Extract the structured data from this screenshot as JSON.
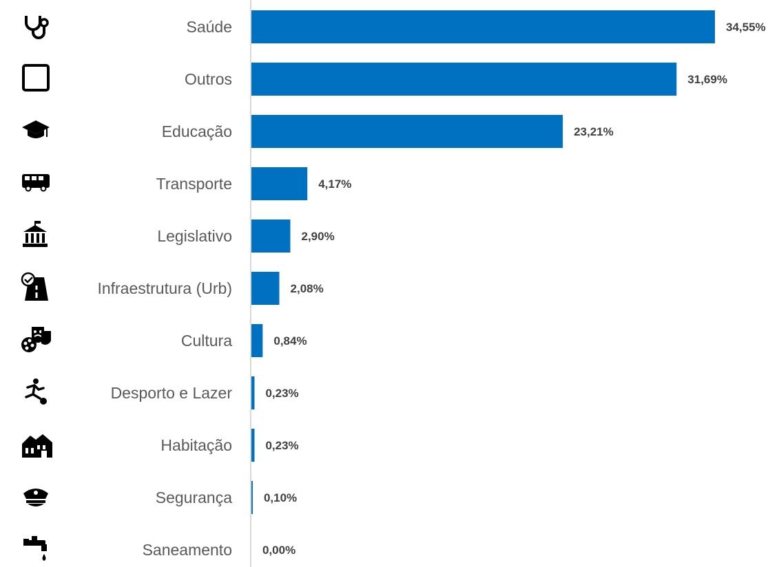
{
  "chart_data": {
    "type": "bar",
    "orientation": "horizontal",
    "categories": [
      "Saúde",
      "Outros",
      "Educação",
      "Transporte",
      "Legislativo",
      "Infraestrutura (Urb)",
      "Cultura",
      "Desporto e Lazer",
      "Habitação",
      "Segurança",
      "Saneamento"
    ],
    "values": [
      34.55,
      31.69,
      23.21,
      4.17,
      2.9,
      2.08,
      0.84,
      0.23,
      0.23,
      0.1,
      0.0
    ],
    "value_labels": [
      "34,55%",
      "31,69%",
      "23,21%",
      "4,17%",
      "2,90%",
      "2,08%",
      "0,84%",
      "0,23%",
      "0,23%",
      "0,10%",
      "0,00%"
    ],
    "icons": [
      "stethoscope-icon",
      "square-outline-icon",
      "graduation-cap-icon",
      "bus-icon",
      "government-building-icon",
      "road-icon",
      "theater-masks-palette-icon",
      "soccer-player-icon",
      "houses-icon",
      "police-cap-icon",
      "water-faucet-icon"
    ],
    "bar_color": "#0070C0",
    "xlim": [
      0,
      34.55
    ],
    "grid": false,
    "legend": "none"
  }
}
